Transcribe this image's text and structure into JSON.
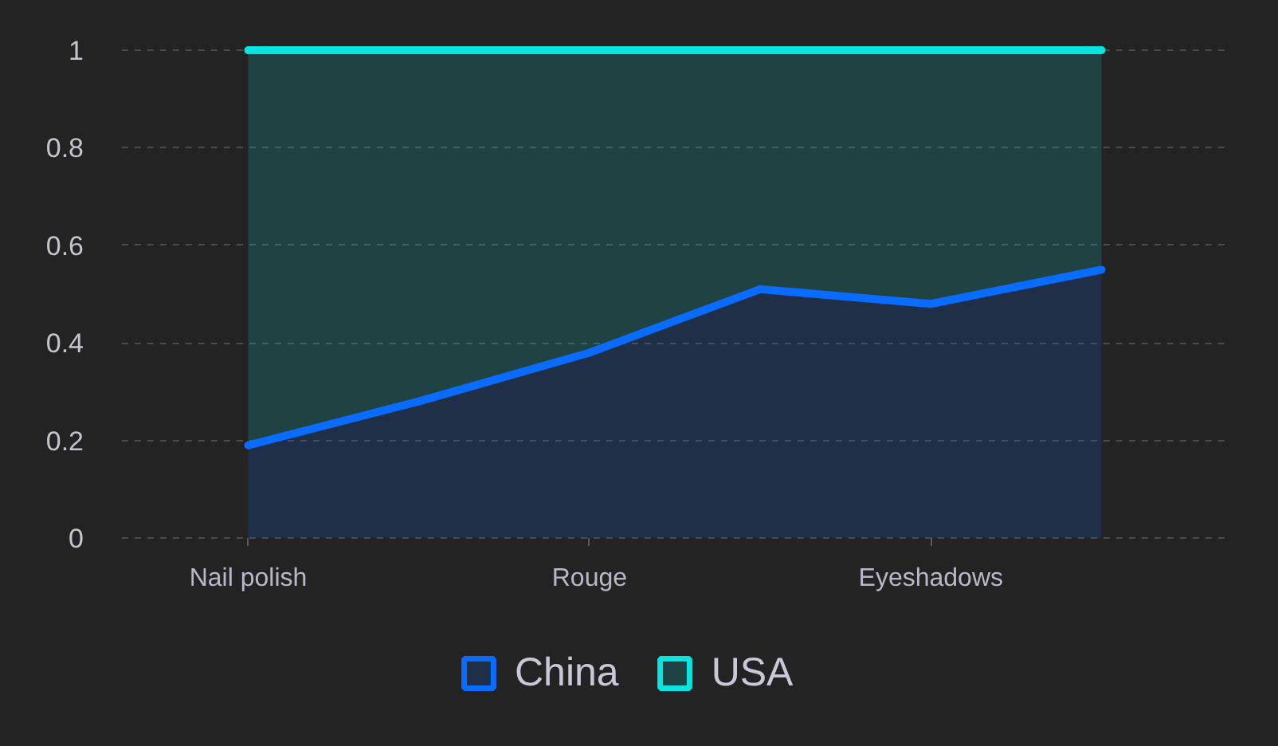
{
  "chart_data": {
    "type": "area",
    "stacked": true,
    "categories": [
      "Nail polish",
      null,
      "Rouge",
      null,
      "Eyeshadows",
      null
    ],
    "series": [
      {
        "name": "China",
        "color": "#0a6cff",
        "values": [
          0.19,
          0.28,
          0.38,
          0.51,
          0.48,
          0.55
        ]
      },
      {
        "name": "USA",
        "color": "#0ae3df",
        "values": [
          0.81,
          0.72,
          0.62,
          0.49,
          0.52,
          0.45
        ]
      }
    ],
    "ylim": [
      0,
      1
    ],
    "yticks": [
      0,
      0.2,
      0.4,
      0.6,
      0.8,
      1
    ],
    "grid": "y",
    "legend": "bottom",
    "line_style": "solid"
  }
}
